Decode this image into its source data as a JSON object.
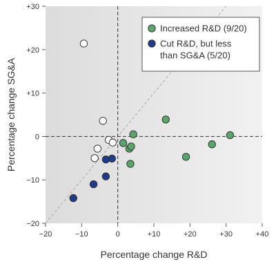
{
  "chart_data": {
    "type": "scatter",
    "xlabel": "Percentage change R&D",
    "ylabel": "Percentage change SG&A",
    "xlim": [
      -20,
      40
    ],
    "ylim": [
      -20,
      30
    ],
    "x_ticks": [
      {
        "value": -20,
        "label": "−20"
      },
      {
        "value": -10,
        "label": "−10"
      },
      {
        "value": 0,
        "label": "0"
      },
      {
        "value": 10,
        "label": "+10"
      },
      {
        "value": 20,
        "label": "+20"
      },
      {
        "value": 30,
        "label": "+30"
      },
      {
        "value": 40,
        "label": "+40"
      }
    ],
    "y_ticks": [
      {
        "value": 30,
        "label": "+30"
      },
      {
        "value": 20,
        "label": "+20"
      },
      {
        "value": 10,
        "label": "+10"
      },
      {
        "value": 0,
        "label": "0"
      },
      {
        "value": -10,
        "label": "−10"
      },
      {
        "value": -20,
        "label": "−20"
      }
    ],
    "grid": false,
    "diagonal_reference": true,
    "zero_lines": true,
    "legend_position": "top-right",
    "series": [
      {
        "name": "Increased R&D (9/20)",
        "color": "#5aa56a",
        "points": [
          {
            "x": 1.5,
            "y": -1.5
          },
          {
            "x": 3.2,
            "y": -2.8
          },
          {
            "x": 3.7,
            "y": -2.3
          },
          {
            "x": 3.5,
            "y": -6.3
          },
          {
            "x": 4.3,
            "y": 0.5
          },
          {
            "x": 13.3,
            "y": 3.9
          },
          {
            "x": 18.9,
            "y": -4.7
          },
          {
            "x": 26.1,
            "y": -1.8
          },
          {
            "x": 31.1,
            "y": 0.3
          }
        ]
      },
      {
        "name": "Cut R&D, but less than SG&A (5/20)",
        "color": "#1f3c88",
        "points": [
          {
            "x": -12.3,
            "y": -14.2
          },
          {
            "x": -6.7,
            "y": -11.0
          },
          {
            "x": -3.3,
            "y": -9.2
          },
          {
            "x": -3.3,
            "y": -5.3
          },
          {
            "x": -1.6,
            "y": -5.1
          }
        ]
      },
      {
        "name": "",
        "color": "#ffffff",
        "points": [
          {
            "x": -9.4,
            "y": 21.4
          },
          {
            "x": -4.1,
            "y": 3.6
          },
          {
            "x": -2.5,
            "y": -0.8
          },
          {
            "x": -1.4,
            "y": -1.4
          },
          {
            "x": -5.6,
            "y": -2.8
          },
          {
            "x": -6.4,
            "y": -5.0
          }
        ]
      }
    ],
    "legend": [
      {
        "label": "Increased R&D (9/20)",
        "color": "#5aa56a"
      },
      {
        "label_lines": [
          "Cut R&D, but less",
          "than SG&A (5/20)"
        ],
        "color": "#1f3c88"
      }
    ]
  }
}
